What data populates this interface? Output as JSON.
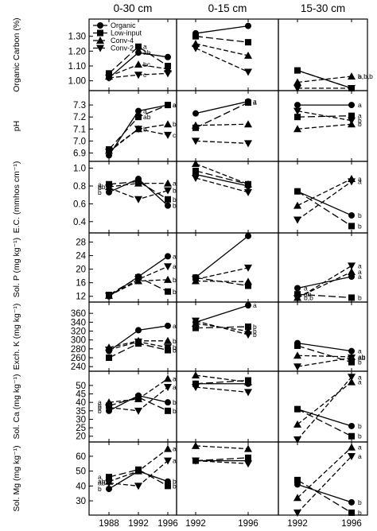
{
  "chart_data": {
    "type": "line",
    "column_titles": [
      "0-30 cm",
      "0-15 cm",
      "15-30 cm"
    ],
    "columns": [
      {
        "years": [
          "1988",
          "1992",
          "1996"
        ]
      },
      {
        "years": [
          "1992",
          "1996"
        ]
      },
      {
        "years": [
          "1992",
          "1996"
        ]
      }
    ],
    "x_tick_labels": [
      [
        "1988",
        "1992",
        "1996"
      ],
      [
        "1992",
        "1996"
      ],
      [
        "1992",
        "1996"
      ]
    ],
    "series": [
      {
        "name": "Organic",
        "marker": "circle",
        "dash": "solid"
      },
      {
        "name": "Low-input",
        "marker": "square",
        "dash": "long-dash"
      },
      {
        "name": "Conv-4",
        "marker": "triangle-up",
        "dash": "dash"
      },
      {
        "name": "Conv-2",
        "marker": "triangle-down",
        "dash": "dash"
      }
    ],
    "legend": {
      "panel": 0,
      "column": 0,
      "placement": "top-left"
    },
    "panels": [
      {
        "ylabel": "Organic Carbon (%)",
        "ylim": [
          0.95,
          1.4
        ],
        "yticks": [
          1.0,
          1.1,
          1.2,
          1.3
        ],
        "ytick_labels": [
          "1.00",
          "1.10",
          "1.20",
          "1.30"
        ],
        "data": [
          [
            [
              1.02,
              1.19,
              1.16
            ],
            [
              1.05,
              1.23,
              1.1
            ],
            [
              1.03,
              1.11,
              1.08
            ],
            [
              1.02,
              1.04,
              1.05
            ]
          ],
          [
            [
              1.32,
              1.37
            ],
            [
              1.3,
              1.26
            ],
            [
              1.25,
              1.17
            ],
            [
              1.22,
              1.06
            ]
          ],
          [
            [
              1.07,
              0.95
            ],
            [
              1.07,
              0.95
            ],
            [
              0.99,
              1.03
            ],
            [
              0.95,
              0.95
            ]
          ]
        ],
        "letters": [
          {
            "col": 0,
            "t": 1,
            "labels": [
              "a",
              "ab",
              "bc",
              "c"
            ]
          },
          {
            "col": 2,
            "t": 1,
            "labels": [
              "b,b,b"
            ]
          },
          {
            "col": 2,
            "t": 1,
            "labels": [
              "a"
            ]
          }
        ]
      },
      {
        "ylabel": "pH",
        "ylim": [
          6.85,
          7.4
        ],
        "yticks": [
          6.9,
          7.0,
          7.1,
          7.2,
          7.3
        ],
        "ytick_labels": [
          "6.9",
          "7.0",
          "7.1",
          "7.2",
          "7.3"
        ],
        "data": [
          [
            [
              6.88,
              7.25,
              7.3
            ],
            [
              6.93,
              7.2,
              7.3
            ],
            [
              6.92,
              7.1,
              7.14
            ],
            [
              6.91,
              7.1,
              7.05
            ]
          ],
          [
            [
              7.23,
              7.33
            ],
            [
              7.11,
              7.32
            ],
            [
              7.13,
              7.14
            ],
            [
              7.0,
              6.98
            ]
          ],
          [
            [
              7.3,
              7.3
            ],
            [
              7.2,
              7.21
            ],
            [
              7.1,
              7.14
            ],
            [
              7.25,
              7.17
            ]
          ]
        ],
        "letters": [
          {
            "col": 0,
            "t": 1,
            "labels": [
              "a",
              "ab",
              "b"
            ]
          },
          {
            "col": 0,
            "t": 2,
            "labels": [
              "a",
              "a",
              "b",
              "c"
            ]
          },
          {
            "col": 1,
            "t": 1,
            "labels": [
              "a",
              "a"
            ]
          },
          {
            "col": 2,
            "t": 1,
            "labels": [
              "a",
              "a",
              "b",
              "b"
            ]
          }
        ]
      },
      {
        "ylabel": "E.C. (mmhos cm⁻¹)",
        "ylim": [
          0.3,
          1.05
        ],
        "yticks": [
          0.4,
          0.6,
          0.8,
          1.0
        ],
        "ytick_labels": [
          "0.4",
          "0.6",
          "0.8",
          "1.0"
        ],
        "data": [
          [
            [
              0.73,
              0.88,
              0.58
            ],
            [
              0.82,
              0.85,
              0.65
            ],
            [
              0.79,
              0.83,
              0.83
            ],
            [
              0.78,
              0.65,
              0.75
            ]
          ],
          [
            [
              0.93,
              0.8
            ],
            [
              0.97,
              0.82
            ],
            [
              1.05,
              0.82
            ],
            [
              0.89,
              0.73
            ]
          ],
          [
            [
              0.74,
              0.47
            ],
            [
              0.74,
              0.35
            ],
            [
              0.58,
              0.88
            ],
            [
              0.42,
              0.85
            ]
          ]
        ],
        "letters": [
          {
            "col": 0,
            "t": 0,
            "labels": [
              "a",
              "ab",
              "b",
              "b"
            ]
          },
          {
            "col": 0,
            "t": 2,
            "labels": [
              "a",
              "b",
              "b",
              "b"
            ]
          },
          {
            "col": 2,
            "t": 1,
            "labels": [
              "a",
              "a",
              "b",
              "b"
            ]
          }
        ]
      },
      {
        "ylabel": "Sol. P (mg kg⁻¹)",
        "ylim": [
          11,
          30
        ],
        "yticks": [
          12,
          16,
          20,
          24,
          28
        ],
        "ytick_labels": [
          "12",
          "16",
          "20",
          "24",
          "28"
        ],
        "data": [
          [
            [
              12.0,
              17.8,
              23.8
            ],
            [
              12.4,
              17.6,
              13.4
            ],
            [
              12.2,
              16.5,
              16.9
            ],
            [
              12.1,
              17.0,
              20.8
            ]
          ],
          [
            [
              17.6,
              29.8
            ],
            [
              17.5,
              15.1
            ],
            [
              16.5,
              16.3
            ],
            [
              17.0,
              20.4
            ]
          ],
          [
            [
              14.4,
              17.8
            ],
            [
              12.6,
              11.6
            ],
            [
              11.6,
              19.2
            ],
            [
              11.4,
              21.0
            ]
          ]
        ],
        "letters": [
          {
            "col": 0,
            "t": 2,
            "labels": [
              "a",
              "a",
              "b",
              "b"
            ]
          },
          {
            "col": 2,
            "t": 0,
            "labels": [
              "a",
              "ab",
              "b,b"
            ]
          },
          {
            "col": 2,
            "t": 1,
            "labels": [
              "a",
              "a",
              "a",
              "b"
            ]
          }
        ]
      },
      {
        "ylabel": "Exch. K (mg kg⁻¹)",
        "ylim": [
          235,
          380
        ],
        "yticks": [
          240,
          260,
          280,
          300,
          320,
          340,
          360
        ],
        "ytick_labels": [
          "240",
          "260",
          "280",
          "300",
          "320",
          "340",
          "360"
        ],
        "data": [
          [
            [
              275,
              322,
              332
            ],
            [
              260,
              292,
              277
            ],
            [
              283,
              298,
              298
            ],
            [
              278,
              296,
              283
            ]
          ],
          [
            [
              340,
              378
            ],
            [
              327,
              330
            ],
            [
              337,
              320
            ],
            [
              343,
              312
            ]
          ],
          [
            [
              293,
              275
            ],
            [
              287,
              250
            ],
            [
              265,
              262
            ],
            [
              240,
              260
            ]
          ]
        ],
        "letters": [
          {
            "col": 0,
            "t": 2,
            "labels": [
              "a",
              "b",
              "b",
              "b"
            ]
          },
          {
            "col": 1,
            "t": 1,
            "labels": [
              "a",
              "b",
              "b",
              "b"
            ]
          },
          {
            "col": 2,
            "t": 1,
            "labels": [
              "a",
              "ab",
              "ab",
              "b"
            ]
          }
        ]
      },
      {
        "ylabel": "Sol. Ca (mg kg⁻¹)",
        "ylim": [
          18,
          57
        ],
        "yticks": [
          20,
          25,
          30,
          35,
          40,
          45,
          50
        ],
        "ytick_labels": [
          "20",
          "25",
          "30",
          "35",
          "40",
          "45",
          "50"
        ],
        "data": [
          [
            [
              35,
              44,
              40
            ],
            [
              38,
              43,
              35
            ],
            [
              40,
              42,
              54
            ],
            [
              37,
              35,
              49
            ]
          ],
          [
            [
              51,
              51
            ],
            [
              51,
              53
            ],
            [
              56,
              52
            ],
            [
              49,
              46
            ]
          ],
          [
            [
              36,
              26
            ],
            [
              36,
              20
            ],
            [
              27,
              52
            ],
            [
              18,
              55
            ]
          ]
        ],
        "letters": [
          {
            "col": 0,
            "t": 0,
            "labels": [
              "a",
              "b",
              "b",
              "b"
            ]
          },
          {
            "col": 0,
            "t": 2,
            "labels": [
              "a",
              "a",
              "b",
              "b"
            ]
          },
          {
            "col": 2,
            "t": 1,
            "labels": [
              "a",
              "a",
              "b",
              "b"
            ]
          }
        ]
      },
      {
        "ylabel": "Sol. Mg (mg kg⁻¹)",
        "ylim": [
          22,
          68
        ],
        "yticks": [
          30,
          40,
          50,
          60
        ],
        "ytick_labels": [
          "30",
          "40",
          "50",
          "60"
        ],
        "data": [
          [
            [
              38,
              50,
              43
            ],
            [
              46,
              51,
              40
            ],
            [
              43,
              50,
              65
            ],
            [
              42,
              40,
              57
            ]
          ],
          [
            [
              57,
              57
            ],
            [
              57,
              59
            ],
            [
              67,
              65
            ],
            [
              57,
              55
            ]
          ],
          [
            [
              41,
              29
            ],
            [
              44,
              22
            ],
            [
              32,
              66
            ],
            [
              22,
              60
            ]
          ]
        ],
        "letters": [
          {
            "col": 0,
            "t": 0,
            "labels": [
              "a",
              "ab",
              "ab",
              "b"
            ]
          },
          {
            "col": 0,
            "t": 2,
            "labels": [
              "a",
              "a",
              "b",
              "b"
            ]
          },
          {
            "col": 2,
            "t": 1,
            "labels": [
              "a",
              "a",
              "b",
              "b"
            ]
          }
        ]
      }
    ]
  }
}
